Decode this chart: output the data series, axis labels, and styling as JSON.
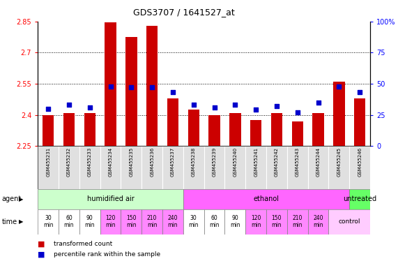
{
  "title": "GDS3707 / 1641527_at",
  "samples": [
    "GSM455231",
    "GSM455232",
    "GSM455233",
    "GSM455234",
    "GSM455235",
    "GSM455236",
    "GSM455237",
    "GSM455238",
    "GSM455239",
    "GSM455240",
    "GSM455241",
    "GSM455242",
    "GSM455243",
    "GSM455244",
    "GSM455245",
    "GSM455246"
  ],
  "bar_values": [
    2.4,
    2.41,
    2.41,
    2.845,
    2.775,
    2.83,
    2.48,
    2.425,
    2.4,
    2.41,
    2.375,
    2.41,
    2.37,
    2.41,
    2.56,
    2.48
  ],
  "percentile_values": [
    30,
    33,
    31,
    48,
    47,
    47,
    43,
    33,
    31,
    33,
    29,
    32,
    27,
    35,
    48,
    43
  ],
  "ymin": 2.25,
  "ymax": 2.85,
  "yticks": [
    2.25,
    2.4,
    2.55,
    2.7,
    2.85
  ],
  "ytick_labels": [
    "2.25",
    "2.4",
    "2.55",
    "2.7",
    "2.85"
  ],
  "y2min": 0,
  "y2max": 100,
  "y2ticks": [
    0,
    25,
    50,
    75,
    100
  ],
  "y2tick_labels": [
    "0",
    "25",
    "50",
    "75",
    "100%"
  ],
  "bar_color": "#cc0000",
  "dot_color": "#0000cc",
  "agent_groups": [
    {
      "label": "humidified air",
      "start": 0,
      "end": 7,
      "color": "#ccffcc"
    },
    {
      "label": "ethanol",
      "start": 7,
      "end": 15,
      "color": "#ff66ff"
    },
    {
      "label": "untreated",
      "start": 15,
      "end": 16,
      "color": "#66ff66"
    }
  ],
  "time_labels": [
    "30\nmin",
    "60\nmin",
    "90\nmin",
    "120\nmin",
    "150\nmin",
    "210\nmin",
    "240\nmin",
    "30\nmin",
    "60\nmin",
    "90\nmin",
    "120\nmin",
    "150\nmin",
    "210\nmin",
    "240\nmin",
    "control"
  ],
  "time_colors": [
    "#ffffff",
    "#ffffff",
    "#ffffff",
    "#ff88ff",
    "#ff88ff",
    "#ff88ff",
    "#ff88ff",
    "#ffffff",
    "#ffffff",
    "#ffffff",
    "#ff88ff",
    "#ff88ff",
    "#ff88ff",
    "#ff88ff",
    "#ffccff"
  ],
  "legend_bar": "transformed count",
  "legend_dot": "percentile rank within the sample",
  "background_color": "#ffffff"
}
